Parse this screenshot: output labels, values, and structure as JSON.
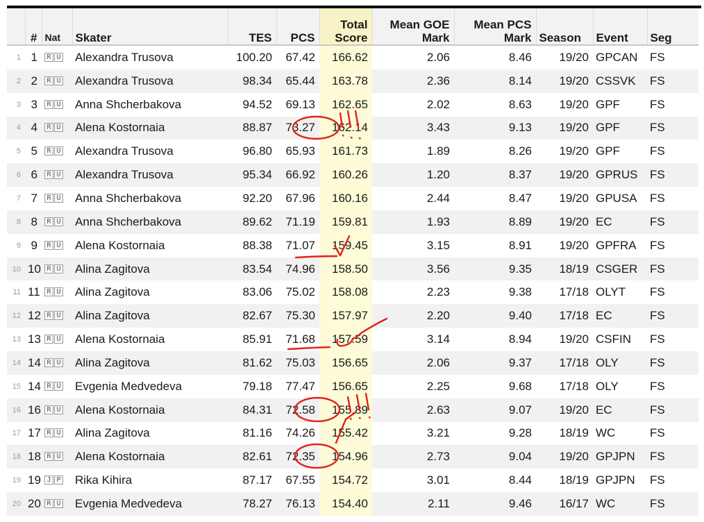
{
  "columns": {
    "index": "",
    "rank": "#",
    "nat": "Nat",
    "skater": "Skater",
    "tes": "TES",
    "pcs": "PCS",
    "total": "Total Score",
    "goe": "Mean GOE Mark",
    "pcs_mark": "Mean PCS Mark",
    "season": "Season",
    "event": "Event",
    "seg": "Seg"
  },
  "rows": [
    {
      "index": "1",
      "rank": "1",
      "nat": [
        "R",
        "U"
      ],
      "skater": "Alexandra Trusova",
      "tes": "100.20",
      "pcs": "67.42",
      "total": "166.62",
      "goe": "2.06",
      "pcs_mark": "8.46",
      "season": "19/20",
      "event": "GPCAN",
      "seg": "FS"
    },
    {
      "index": "2",
      "rank": "2",
      "nat": [
        "R",
        "U"
      ],
      "skater": "Alexandra Trusova",
      "tes": "98.34",
      "pcs": "65.44",
      "total": "163.78",
      "goe": "2.36",
      "pcs_mark": "8.14",
      "season": "19/20",
      "event": "CSSVK",
      "seg": "FS"
    },
    {
      "index": "3",
      "rank": "3",
      "nat": [
        "R",
        "U"
      ],
      "skater": "Anna Shcherbakova",
      "tes": "94.52",
      "pcs": "69.13",
      "total": "162.65",
      "goe": "2.02",
      "pcs_mark": "8.63",
      "season": "19/20",
      "event": "GPF",
      "seg": "FS"
    },
    {
      "index": "4",
      "rank": "4",
      "nat": [
        "R",
        "U"
      ],
      "skater": "Alena Kostornaia",
      "tes": "88.87",
      "pcs": "73.27",
      "total": "162.14",
      "goe": "3.43",
      "pcs_mark": "9.13",
      "season": "19/20",
      "event": "GPF",
      "seg": "FS"
    },
    {
      "index": "5",
      "rank": "5",
      "nat": [
        "R",
        "U"
      ],
      "skater": "Alexandra Trusova",
      "tes": "96.80",
      "pcs": "65.93",
      "total": "161.73",
      "goe": "1.89",
      "pcs_mark": "8.26",
      "season": "19/20",
      "event": "GPF",
      "seg": "FS"
    },
    {
      "index": "6",
      "rank": "6",
      "nat": [
        "R",
        "U"
      ],
      "skater": "Alexandra Trusova",
      "tes": "95.34",
      "pcs": "66.92",
      "total": "160.26",
      "goe": "1.20",
      "pcs_mark": "8.37",
      "season": "19/20",
      "event": "GPRUS",
      "seg": "FS"
    },
    {
      "index": "7",
      "rank": "7",
      "nat": [
        "R",
        "U"
      ],
      "skater": "Anna Shcherbakova",
      "tes": "92.20",
      "pcs": "67.96",
      "total": "160.16",
      "goe": "2.44",
      "pcs_mark": "8.47",
      "season": "19/20",
      "event": "GPUSA",
      "seg": "FS"
    },
    {
      "index": "8",
      "rank": "8",
      "nat": [
        "R",
        "U"
      ],
      "skater": "Anna Shcherbakova",
      "tes": "89.62",
      "pcs": "71.19",
      "total": "159.81",
      "goe": "1.93",
      "pcs_mark": "8.89",
      "season": "19/20",
      "event": "EC",
      "seg": "FS"
    },
    {
      "index": "9",
      "rank": "9",
      "nat": [
        "R",
        "U"
      ],
      "skater": "Alena Kostornaia",
      "tes": "88.38",
      "pcs": "71.07",
      "total": "159.45",
      "goe": "3.15",
      "pcs_mark": "8.91",
      "season": "19/20",
      "event": "GPFRA",
      "seg": "FS"
    },
    {
      "index": "10",
      "rank": "10",
      "nat": [
        "R",
        "U"
      ],
      "skater": "Alina Zagitova",
      "tes": "83.54",
      "pcs": "74.96",
      "total": "158.50",
      "goe": "3.56",
      "pcs_mark": "9.35",
      "season": "18/19",
      "event": "CSGER",
      "seg": "FS"
    },
    {
      "index": "11",
      "rank": "11",
      "nat": [
        "R",
        "U"
      ],
      "skater": "Alina Zagitova",
      "tes": "83.06",
      "pcs": "75.02",
      "total": "158.08",
      "goe": "2.23",
      "pcs_mark": "9.38",
      "season": "17/18",
      "event": "OLYT",
      "seg": "FS"
    },
    {
      "index": "12",
      "rank": "12",
      "nat": [
        "R",
        "U"
      ],
      "skater": "Alina Zagitova",
      "tes": "82.67",
      "pcs": "75.30",
      "total": "157.97",
      "goe": "2.20",
      "pcs_mark": "9.40",
      "season": "17/18",
      "event": "EC",
      "seg": "FS"
    },
    {
      "index": "13",
      "rank": "13",
      "nat": [
        "R",
        "U"
      ],
      "skater": "Alena Kostornaia",
      "tes": "85.91",
      "pcs": "71.68",
      "total": "157.59",
      "goe": "3.14",
      "pcs_mark": "8.94",
      "season": "19/20",
      "event": "CSFIN",
      "seg": "FS"
    },
    {
      "index": "14",
      "rank": "14",
      "nat": [
        "R",
        "U"
      ],
      "skater": "Alina Zagitova",
      "tes": "81.62",
      "pcs": "75.03",
      "total": "156.65",
      "goe": "2.06",
      "pcs_mark": "9.37",
      "season": "17/18",
      "event": "OLY",
      "seg": "FS"
    },
    {
      "index": "15",
      "rank": "14",
      "nat": [
        "R",
        "U"
      ],
      "skater": "Evgenia Medvedeva",
      "tes": "79.18",
      "pcs": "77.47",
      "total": "156.65",
      "goe": "2.25",
      "pcs_mark": "9.68",
      "season": "17/18",
      "event": "OLY",
      "seg": "FS"
    },
    {
      "index": "16",
      "rank": "16",
      "nat": [
        "R",
        "U"
      ],
      "skater": "Alena Kostornaia",
      "tes": "84.31",
      "pcs": "72.58",
      "total": "155.89",
      "goe": "2.63",
      "pcs_mark": "9.07",
      "season": "19/20",
      "event": "EC",
      "seg": "FS"
    },
    {
      "index": "17",
      "rank": "17",
      "nat": [
        "R",
        "U"
      ],
      "skater": "Alina Zagitova",
      "tes": "81.16",
      "pcs": "74.26",
      "total": "155.42",
      "goe": "3.21",
      "pcs_mark": "9.28",
      "season": "18/19",
      "event": "WC",
      "seg": "FS"
    },
    {
      "index": "18",
      "rank": "18",
      "nat": [
        "R",
        "U"
      ],
      "skater": "Alena Kostornaia",
      "tes": "82.61",
      "pcs": "72.35",
      "total": "154.96",
      "goe": "2.73",
      "pcs_mark": "9.04",
      "season": "19/20",
      "event": "GPJPN",
      "seg": "FS"
    },
    {
      "index": "19",
      "rank": "19",
      "nat": [
        "J",
        "P"
      ],
      "skater": "Rika Kihira",
      "tes": "87.17",
      "pcs": "67.55",
      "total": "154.72",
      "goe": "3.01",
      "pcs_mark": "8.44",
      "season": "18/19",
      "event": "GPJPN",
      "seg": "FS"
    },
    {
      "index": "20",
      "rank": "20",
      "nat": [
        "R",
        "U"
      ],
      "skater": "Evgenia Medvedeva",
      "tes": "78.27",
      "pcs": "76.13",
      "total": "154.40",
      "goe": "2.11",
      "pcs_mark": "9.46",
      "season": "16/17",
      "event": "WC",
      "seg": "FS"
    }
  ],
  "annotations": {
    "color": "#e0221e",
    "circled_pcs_rows": [
      "4",
      "16",
      "18"
    ],
    "underlined_pcs_rows": [
      "9",
      "13"
    ],
    "marks": [
      "!!!",
      "!!!",
      "✓",
      "✓"
    ]
  },
  "colors": {
    "total_column_bg": "#fdfbd8",
    "alt_row_bg": "#f1f1f1",
    "header_bg": "#f2f2f2"
  }
}
